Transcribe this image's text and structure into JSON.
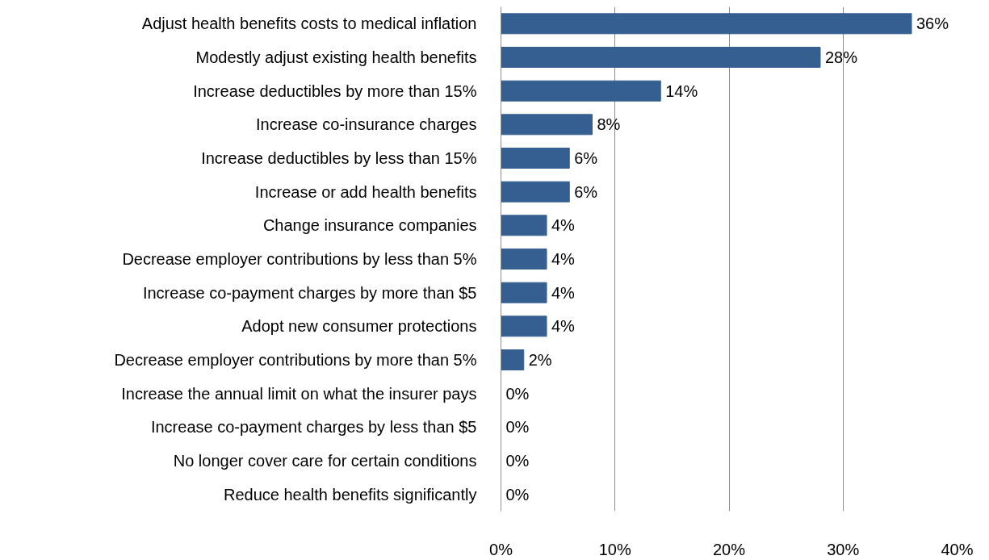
{
  "chart_data": {
    "type": "bar",
    "orientation": "horizontal",
    "categories": [
      "Adjust health benefits costs to medical inflation",
      "Modestly adjust existing health benefits",
      "Increase deductibles by more than 15%",
      "Increase co-insurance charges",
      "Increase deductibles by less than 15%",
      "Increase or add health benefits",
      "Change insurance companies",
      "Decrease employer contributions by less than 5%",
      "Increase co-payment charges by more than $5",
      "Adopt new consumer protections",
      "Decrease employer contributions by more than 5%",
      "Increase the annual limit on what the insurer pays",
      "Increase co-payment charges by less than $5",
      "No longer cover care for certain conditions",
      "Reduce health benefits significantly"
    ],
    "values": [
      36,
      28,
      14,
      8,
      6,
      6,
      4,
      4,
      4,
      4,
      2,
      0,
      0,
      0,
      0
    ],
    "value_labels": [
      "36%",
      "28%",
      "14%",
      "8%",
      "6%",
      "6%",
      "4%",
      "4%",
      "4%",
      "4%",
      "2%",
      "0%",
      "0%",
      "0%",
      "0%"
    ],
    "color": "#355f91",
    "xlim": [
      0,
      40
    ],
    "xticks": [
      {
        "value": 0,
        "label": "0%"
      },
      {
        "value": 10,
        "label": "10%"
      },
      {
        "value": 20,
        "label": "20%"
      },
      {
        "value": 30,
        "label": "30%"
      },
      {
        "value": 40,
        "label": "40%"
      }
    ],
    "grid": "x"
  }
}
